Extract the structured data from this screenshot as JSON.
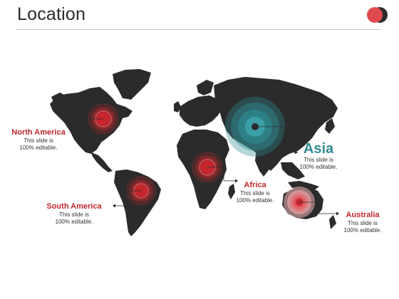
{
  "slide": {
    "title": "Location"
  },
  "colors": {
    "accent_red": "#c0272d",
    "accent_teal": "#2e8b92",
    "map": "#2b2b2b"
  },
  "regions": {
    "north_america": {
      "name": "North America",
      "desc_line1": "This slide is",
      "desc_line2": "100% editable."
    },
    "south_america": {
      "name": "South America",
      "desc_line1": "This slide is",
      "desc_line2": "100% editable."
    },
    "africa": {
      "name": "Africa",
      "desc_line1": "This slide is",
      "desc_line2": "100% editable."
    },
    "asia": {
      "name": "Asia",
      "desc_line1": "This slide is",
      "desc_line2": "100% editable."
    },
    "australia": {
      "name": "Australia",
      "desc_line1": "This slide is",
      "desc_line2": "100% editable."
    }
  }
}
